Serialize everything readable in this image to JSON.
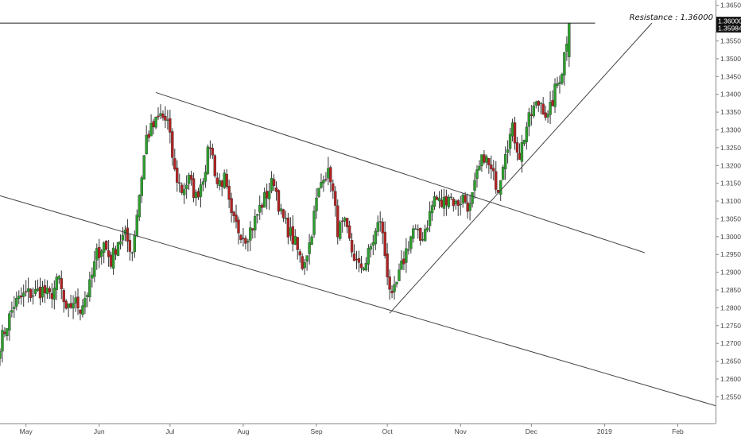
{
  "chart_data": {
    "type": "candlestick",
    "title": "",
    "xlabel": "",
    "ylabel": "",
    "ylim": [
      1.2475,
      1.3665
    ],
    "grid": false,
    "colors": {
      "up": "#2ca02c",
      "down": "#b22222",
      "wick": "#333333",
      "line": "#444444",
      "tag_bg": "#111111"
    },
    "y_ticks": [
      "1.36500",
      "1.36000",
      "1.35500",
      "1.35000",
      "1.34500",
      "1.34000",
      "1.33500",
      "1.33000",
      "1.32500",
      "1.32000",
      "1.31500",
      "1.31000",
      "1.30500",
      "1.30000",
      "1.29500",
      "1.29000",
      "1.28500",
      "1.28000",
      "1.27500",
      "1.27000",
      "1.26500",
      "1.26000",
      "1.25500"
    ],
    "x_ticks": [
      {
        "label": "May",
        "day": 1
      },
      {
        "label": "Jun",
        "day": 32
      },
      {
        "label": "Jul",
        "day": 62
      },
      {
        "label": "Aug",
        "day": 93
      },
      {
        "label": "Sep",
        "day": 124
      },
      {
        "label": "Oct",
        "day": 154
      },
      {
        "label": "Nov",
        "day": 185
      },
      {
        "label": "Dec",
        "day": 215
      },
      {
        "label": "2019",
        "day": 246
      },
      {
        "label": "Feb",
        "day": 277
      }
    ],
    "x_range_days": [
      -10,
      293
    ],
    "close_path": [
      [
        -10,
        1.27
      ],
      [
        -4,
        1.281
      ],
      [
        1,
        1.284
      ],
      [
        4,
        1.284
      ],
      [
        8,
        1.285
      ],
      [
        11,
        1.283
      ],
      [
        15,
        1.288
      ],
      [
        18,
        1.278
      ],
      [
        21,
        1.282
      ],
      [
        24,
        1.28
      ],
      [
        28,
        1.286
      ],
      [
        31,
        1.295
      ],
      [
        34,
        1.298
      ],
      [
        37,
        1.293
      ],
      [
        40,
        1.299
      ],
      [
        43,
        1.3
      ],
      [
        46,
        1.296
      ],
      [
        49,
        1.312
      ],
      [
        52,
        1.328
      ],
      [
        55,
        1.331
      ],
      [
        58,
        1.334
      ],
      [
        61,
        1.332
      ],
      [
        64,
        1.318
      ],
      [
        67,
        1.313
      ],
      [
        70,
        1.316
      ],
      [
        73,
        1.311
      ],
      [
        76,
        1.317
      ],
      [
        79,
        1.326
      ],
      [
        82,
        1.315
      ],
      [
        85,
        1.316
      ],
      [
        88,
        1.305
      ],
      [
        91,
        1.302
      ],
      [
        94,
        1.3
      ],
      [
        97,
        1.303
      ],
      [
        100,
        1.308
      ],
      [
        103,
        1.312
      ],
      [
        106,
        1.316
      ],
      [
        109,
        1.306
      ],
      [
        112,
        1.302
      ],
      [
        115,
        1.298
      ],
      [
        118,
        1.292
      ],
      [
        121,
        1.298
      ],
      [
        124,
        1.31
      ],
      [
        127,
        1.318
      ],
      [
        130,
        1.317
      ],
      [
        133,
        1.302
      ],
      [
        136,
        1.303
      ],
      [
        139,
        1.296
      ],
      [
        142,
        1.291
      ],
      [
        145,
        1.293
      ],
      [
        148,
        1.299
      ],
      [
        151,
        1.305
      ],
      [
        154,
        1.29
      ],
      [
        156,
        1.282
      ],
      [
        159,
        1.289
      ],
      [
        162,
        1.296
      ],
      [
        165,
        1.302
      ],
      [
        168,
        1.299
      ],
      [
        171,
        1.304
      ],
      [
        174,
        1.311
      ],
      [
        177,
        1.309
      ],
      [
        180,
        1.312
      ],
      [
        183,
        1.309
      ],
      [
        186,
        1.311
      ],
      [
        189,
        1.308
      ],
      [
        192,
        1.317
      ],
      [
        195,
        1.323
      ],
      [
        198,
        1.318
      ],
      [
        201,
        1.314
      ],
      [
        204,
        1.325
      ],
      [
        207,
        1.33
      ],
      [
        210,
        1.323
      ],
      [
        213,
        1.331
      ],
      [
        216,
        1.336
      ],
      [
        219,
        1.338
      ],
      [
        222,
        1.333
      ],
      [
        225,
        1.341
      ],
      [
        228,
        1.347
      ],
      [
        231,
        1.36
      ]
    ],
    "trendlines": [
      {
        "name": "upper-channel-line",
        "from": [
          56,
          1.3405
        ],
        "to": [
          263,
          1.2955
        ]
      },
      {
        "name": "lower-channel-line",
        "from": [
          -10,
          1.3115
        ],
        "to": [
          293,
          1.2525
        ]
      },
      {
        "name": "rising-support-line",
        "from": [
          155,
          1.2785
        ],
        "to": [
          266,
          1.36
        ]
      },
      {
        "name": "resistance-line",
        "from": [
          -10,
          1.36
        ],
        "to": [
          242,
          1.36
        ]
      }
    ],
    "annotations": [
      {
        "text": "Resistance : 1.36000"
      }
    ],
    "price_tags": [
      {
        "text": "1.36000",
        "value": 1.36
      },
      {
        "text": "1.35984",
        "value": 1.35984
      }
    ]
  }
}
